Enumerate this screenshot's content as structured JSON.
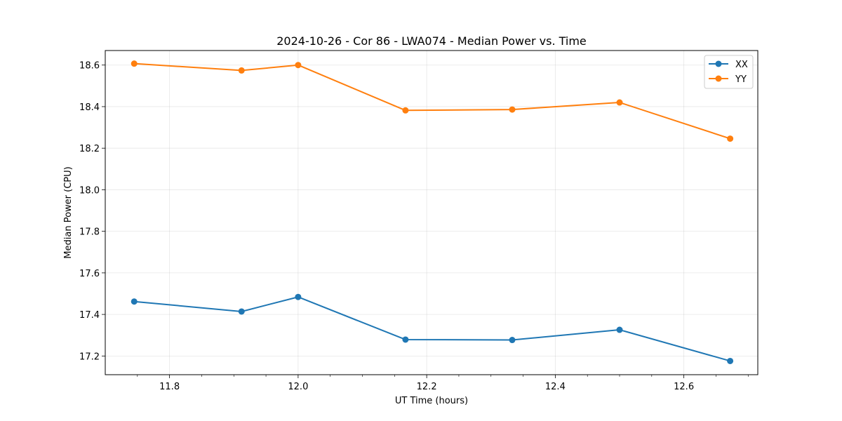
{
  "chart_data": {
    "type": "line",
    "title": "2024-10-26 - Cor 86 - LWA074 - Median Power vs. Time",
    "xlabel": "UT Time (hours)",
    "ylabel": "Median Power (CPU)",
    "xlim": [
      11.7,
      12.715
    ],
    "ylim": [
      17.11,
      18.67
    ],
    "xticks": [
      11.8,
      12.0,
      12.2,
      12.4,
      12.6
    ],
    "xtick_labels": [
      "11.8",
      "12.0",
      "12.2",
      "12.4",
      "12.6"
    ],
    "xminor": [
      11.75,
      11.85,
      11.9,
      11.95,
      12.05,
      12.1,
      12.15,
      12.25,
      12.3,
      12.35,
      12.45,
      12.5,
      12.55,
      12.65,
      12.7
    ],
    "yticks": [
      17.2,
      17.4,
      17.6,
      17.8,
      18.0,
      18.2,
      18.4,
      18.6
    ],
    "ytick_labels": [
      "17.2",
      "17.4",
      "17.6",
      "17.8",
      "18.0",
      "18.2",
      "18.4",
      "18.6"
    ],
    "grid": true,
    "legend_position": "top-right",
    "x": [
      11.745,
      11.912,
      12.0,
      12.167,
      12.333,
      12.5,
      12.672
    ],
    "series": [
      {
        "name": "XX",
        "color": "#1f77b4",
        "values": [
          17.462,
          17.414,
          17.484,
          17.279,
          17.277,
          17.326,
          17.176
        ]
      },
      {
        "name": "YY",
        "color": "#ff7f0e",
        "values": [
          18.607,
          18.574,
          18.6,
          18.382,
          18.386,
          18.42,
          18.246
        ]
      }
    ]
  }
}
